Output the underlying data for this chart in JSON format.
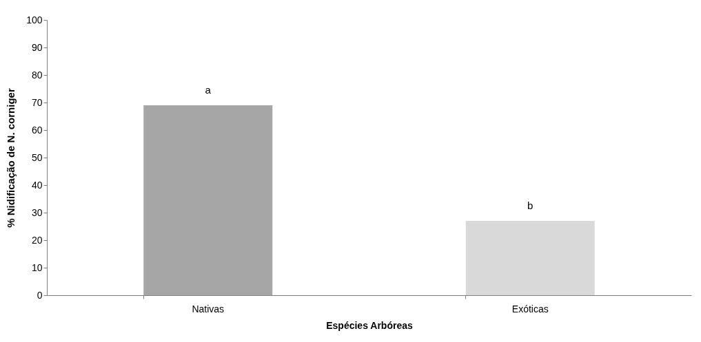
{
  "chart_data": {
    "type": "bar",
    "xlabel": "Espécies Arbóreas",
    "ylabel": "% Nidificação de N. corniger",
    "categories": [
      "Nativas",
      "Exóticas"
    ],
    "values": [
      69,
      27
    ],
    "colors": [
      "#a6a6a6",
      "#d9d9d9"
    ],
    "ylim": [
      0,
      100
    ],
    "yticks": [
      0,
      10,
      20,
      30,
      40,
      50,
      60,
      70,
      80,
      90,
      100
    ],
    "annotations": [
      {
        "text": "a",
        "x": "Nativas",
        "y": 69
      },
      {
        "text": "b",
        "x": "Exóticas",
        "y": 27
      }
    ]
  }
}
